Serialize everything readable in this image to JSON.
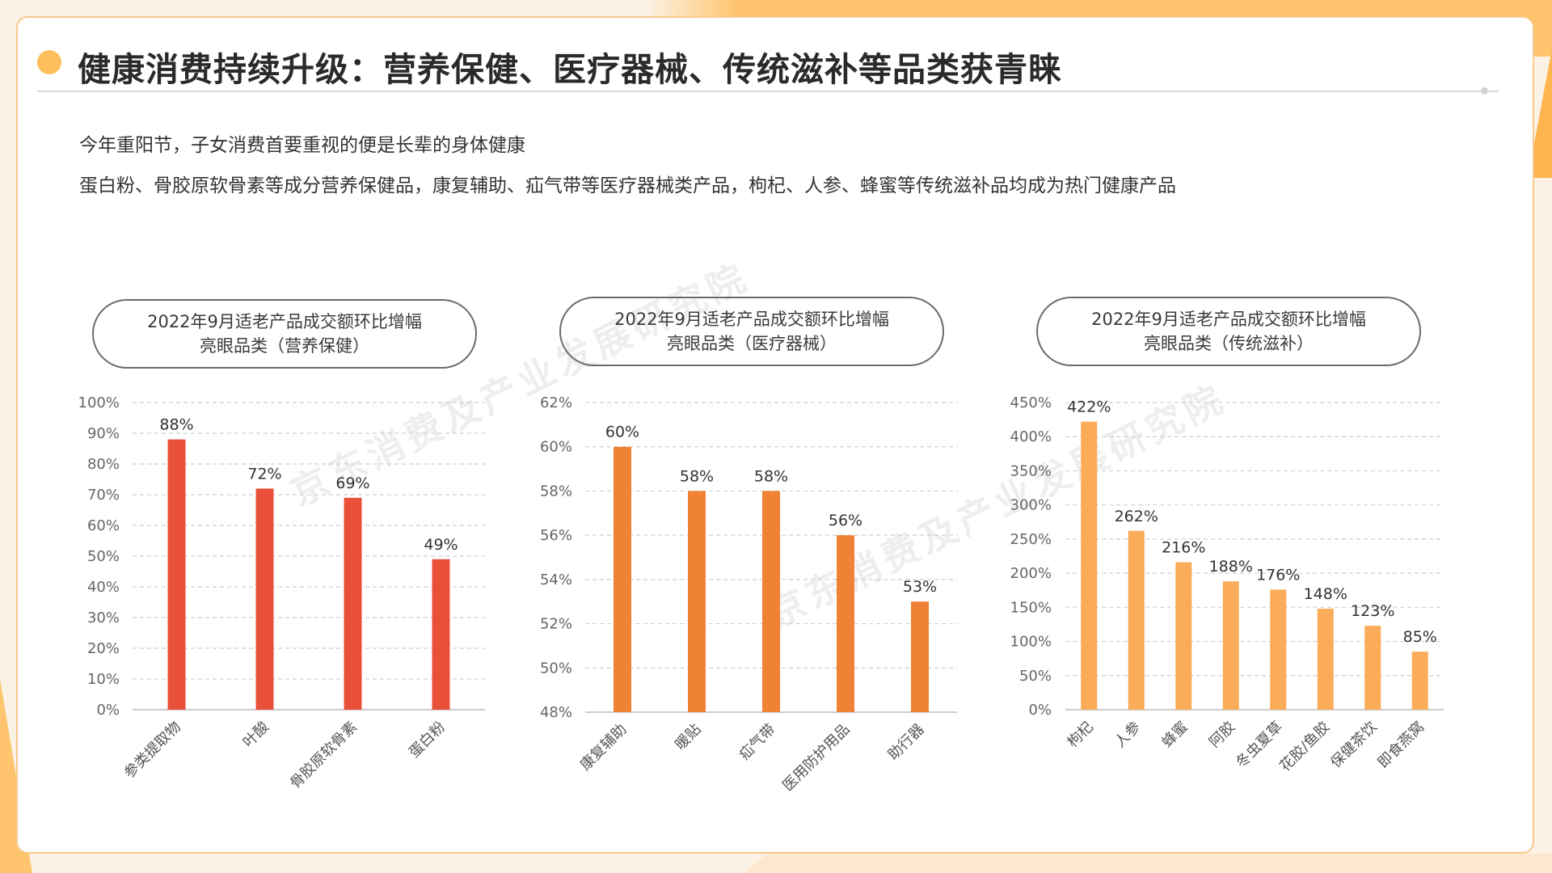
{
  "page": {
    "title": "健康消费持续升级：营养保健、医疗器械、传统滋补等品类获青睐",
    "description_lines": [
      "今年重阳节，子女消费首要重视的便是长辈的身体健康",
      "蛋白粉、骨胶原软骨素等成分营养保健品，康复辅助、疝气带等医疗器械类产品，枸杞、人参、蜂蜜等传统滋补品均成为热门健康产品"
    ],
    "watermarks": [
      "京东消费及产业发展研究院",
      "京东消费及产业发展研究院"
    ]
  },
  "chart_data": [
    {
      "type": "bar",
      "title": [
        "2022年9月适老产品成交额环比增幅",
        "亮眼品类（营养保健）"
      ],
      "categories": [
        "参类提取物",
        "叶酸",
        "骨胶原软骨素",
        "蛋白粉"
      ],
      "values": [
        88,
        72,
        69,
        49
      ],
      "data_labels": [
        "88%",
        "72%",
        "69%",
        "49%"
      ],
      "yticks": [
        "0%",
        "10%",
        "20%",
        "30%",
        "40%",
        "50%",
        "60%",
        "70%",
        "80%",
        "90%",
        "100%"
      ],
      "ylim": [
        0,
        100
      ],
      "grid": true,
      "color": "#e8503a"
    },
    {
      "type": "bar",
      "title": [
        "2022年9月适老产品成交额环比增幅",
        "亮眼品类（医疗器械）"
      ],
      "categories": [
        "康复辅助",
        "暖贴",
        "疝气带",
        "医用防护用品",
        "助行器"
      ],
      "values": [
        60,
        58,
        58,
        56,
        53
      ],
      "data_labels": [
        "60%",
        "58%",
        "58%",
        "56%",
        "53%"
      ],
      "yticks": [
        "48%",
        "50%",
        "52%",
        "54%",
        "56%",
        "58%",
        "60%",
        "62%"
      ],
      "ylim": [
        48,
        62
      ],
      "grid": true,
      "color": "#ef8234"
    },
    {
      "type": "bar",
      "title": [
        "2022年9月适老产品成交额环比增幅",
        "亮眼品类（传统滋补）"
      ],
      "categories": [
        "枸杞",
        "人参",
        "蜂蜜",
        "阿胶",
        "冬虫夏草",
        "花胶/鱼胶",
        "保健茶饮",
        "即食燕窝"
      ],
      "values": [
        422,
        262,
        216,
        188,
        176,
        148,
        123,
        85
      ],
      "data_labels": [
        "422%",
        "262%",
        "216%",
        "188%",
        "176%",
        "148%",
        "123%",
        "85%"
      ],
      "yticks": [
        "0%",
        "50%",
        "100%",
        "150%",
        "200%",
        "250%",
        "300%",
        "350%",
        "400%",
        "450%"
      ],
      "ylim": [
        0,
        450
      ],
      "grid": true,
      "color": "#fbac58"
    }
  ]
}
